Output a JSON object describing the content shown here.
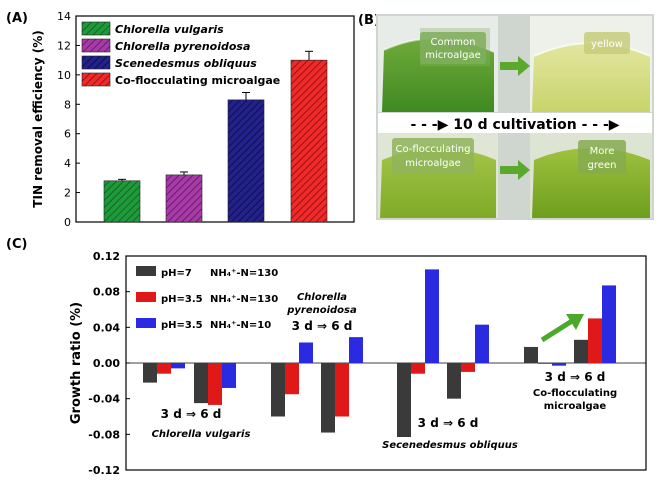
{
  "figure": {
    "panel_a_label": "(A)",
    "panel_b_label": "(B)",
    "panel_c_label": "(C)"
  },
  "chart_data": [
    {
      "type": "bar",
      "id": "A",
      "ylabel": "TIN removal efficiency (%)",
      "ylim": [
        0,
        14
      ],
      "yticks": [
        "0",
        "2",
        "4",
        "6",
        "8",
        "10",
        "12",
        "14"
      ],
      "categories": [
        "Chlorella vulgaris",
        "Chlorella pyrenoidosa",
        "Scenedesmus obliquus",
        "Co-flocculating microalgae"
      ],
      "values": [
        2.8,
        3.2,
        8.3,
        11.0
      ],
      "errors": [
        0.1,
        0.2,
        0.5,
        0.6
      ],
      "colors": [
        "#1f9a3a",
        "#9a2a9a",
        "#1a1a7a",
        "#e02020"
      ]
    },
    {
      "type": "bar",
      "id": "C",
      "ylabel": "Growth ratio (%)",
      "ylim": [
        -0.12,
        0.12
      ],
      "yticks": [
        "-0.12",
        "-0.08",
        "-0.04",
        "0.00",
        "0.04",
        "0.08",
        "0.12"
      ],
      "series": [
        {
          "name": "pH=7",
          "cond": "NH₄⁺-N=130",
          "color": "#3a3a3a",
          "values": [
            -0.022,
            -0.045,
            -0.06,
            -0.078,
            -0.083,
            -0.04,
            0.018,
            0.026
          ]
        },
        {
          "name": "pH=3.5",
          "cond": "NH₄⁺-N=130",
          "color": "#e01818",
          "values": [
            -0.012,
            -0.047,
            -0.035,
            -0.06,
            -0.012,
            -0.01,
            -0.001,
            0.05
          ]
        },
        {
          "name": "pH=3.5",
          "cond": "NH₄⁺-N=10",
          "color": "#2a2ae0",
          "values": [
            -0.006,
            -0.028,
            0.023,
            0.029,
            0.105,
            0.043,
            -0.003,
            0.087
          ]
        }
      ],
      "group_labels": [
        "Chlorella vulgaris",
        "Chlorella pyrenoidosa",
        "Secenedesmus obliquus",
        "Co-flocculating microalgae"
      ],
      "group_labels_line1": [
        "Chlorella vulgaris",
        "Chlorella",
        "Secenedesmus obliquus",
        "Co-flocculating"
      ],
      "group_labels_line2": [
        "",
        "pyrenoidosa",
        "",
        "microalgae"
      ],
      "period_label": "3 d ⇒ 6 d"
    }
  ],
  "photos": {
    "common": "Common microalgae",
    "common_line1": "Common",
    "common_line2": "microalgae",
    "yellow": "yellow",
    "cultivation": "10 d cultivation",
    "cultivation_banner": "- - -▶ 10 d cultivation - - -▶",
    "cof": "Co-flocculating microalgae",
    "cof_line1": "Co-flocculating",
    "cof_line2": "microalgae",
    "more_green": "More green",
    "more_green_line1": "More",
    "more_green_line2": "green"
  }
}
